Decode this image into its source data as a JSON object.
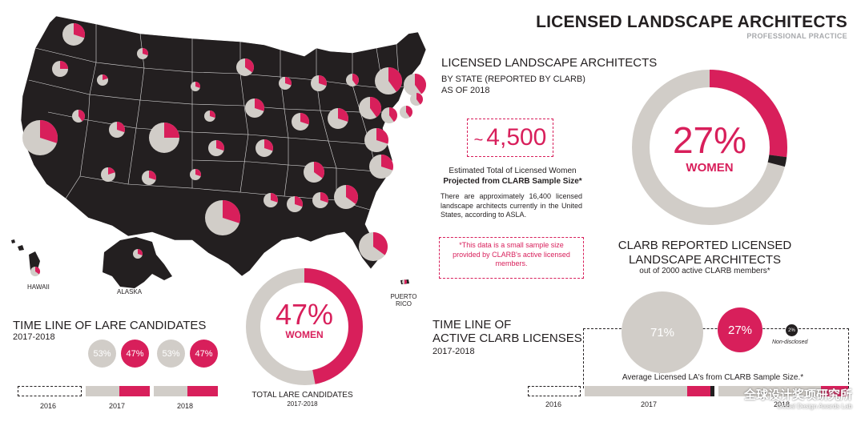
{
  "header": {
    "title": "LICENSED LANDSCAPE ARCHITECTS",
    "subtitle": "PROFESSIONAL PRACTICE"
  },
  "section": {
    "title": "LICENSED LANDSCAPE ARCHITECTS",
    "subtitle_line1": "BY STATE (REPORTED BY CLARB)",
    "subtitle_line2": "AS OF 2018"
  },
  "estimate": {
    "tilde": "~",
    "value": "4,500",
    "label_line1": "Estimated Total of Licensed Women",
    "label_line2": "Projected from CLARB Sample Size*",
    "note": "There are approximately 16,400 licensed landscape architects currently in the United States, according to ASLA.",
    "disclaimer": "*This data is a small sample size provided by CLARB's active licensed members."
  },
  "donut_clarb": {
    "percent_text": "27%",
    "label": "WOMEN",
    "women_fraction": 0.27,
    "nondisclosed_fraction": 0.02
  },
  "clarb_reported": {
    "title_line1": "CLARB REPORTED LICENSED",
    "title_line2": "LANDSCAPE ARCHITECTS",
    "subtitle": "out of 2000 active CLARB members*"
  },
  "map": {
    "label_hawaii": "HAWAII",
    "label_alaska": "ALASKA",
    "label_puerto_rico_1": "PUERTO",
    "label_puerto_rico_2": "RICO"
  },
  "timeline_lare": {
    "title": "TIME LINE OF LARE CANDIDATES",
    "years_label": "2017-2018",
    "years": [
      "2016",
      "2017",
      "2018"
    ],
    "bubbles_2017": {
      "men": "53%",
      "women": "47%"
    },
    "bubbles_2018": {
      "men": "53%",
      "women": "47%"
    }
  },
  "donut_lare": {
    "percent_text": "47%",
    "label": "WOMEN",
    "women_fraction": 0.47,
    "caption": "TOTAL LARE CANDIDATES",
    "caption_years": "2017-2018"
  },
  "timeline_clarb": {
    "title_line1": "TIME LINE OF",
    "title_line2": "ACTIVE CLARB LICENSES",
    "years_label": "2017-2018",
    "years": [
      "2016",
      "2017",
      "2018"
    ],
    "men": "71%",
    "women": "27%",
    "nondisclosed": "2%",
    "nondisclosed_label": "Non-disclosed",
    "avg_label": "Average Licensed LA's from CLARB Sample Size.*"
  },
  "watermark": {
    "text": "全球设计奖项研究所",
    "sub": "Global Design Awards Lab"
  },
  "colors": {
    "pink": "#d81f5b",
    "gray": "#d1cdc8",
    "black": "#231f20"
  }
}
